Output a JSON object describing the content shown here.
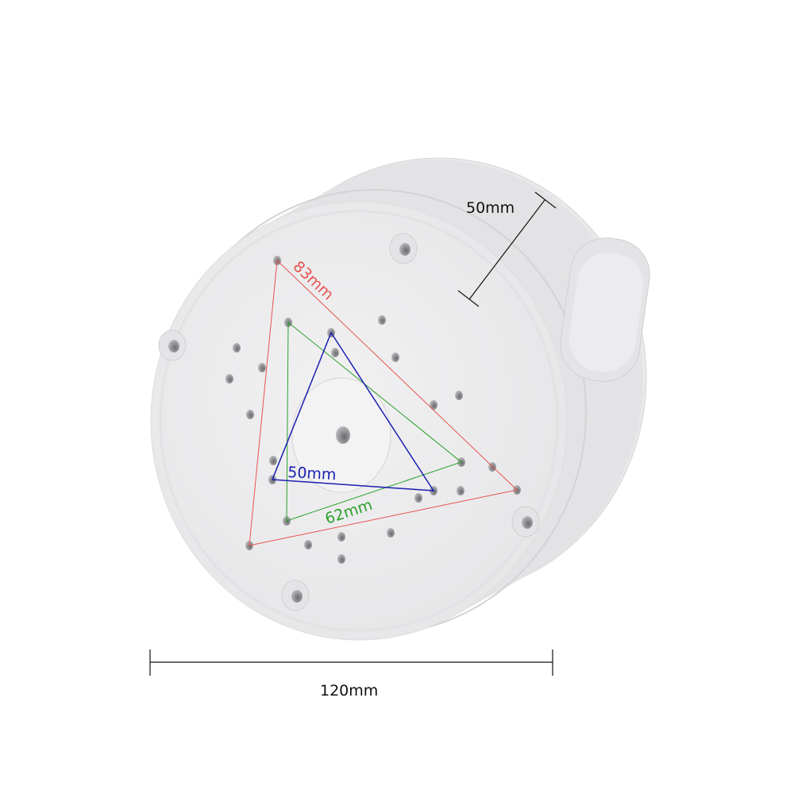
{
  "colors": {
    "background": "#ffffff",
    "housing": "#eeeeef",
    "housing_shade": "#d9d9db",
    "red": "#e8534f",
    "green": "#2aa02a",
    "blue": "#1a1fb0",
    "dimension": "#111111"
  },
  "dimensions": {
    "depth": "50mm",
    "width": "120mm",
    "red_triangle": "83mm",
    "green_triangle": "62mm",
    "blue_triangle": "50mm"
  }
}
